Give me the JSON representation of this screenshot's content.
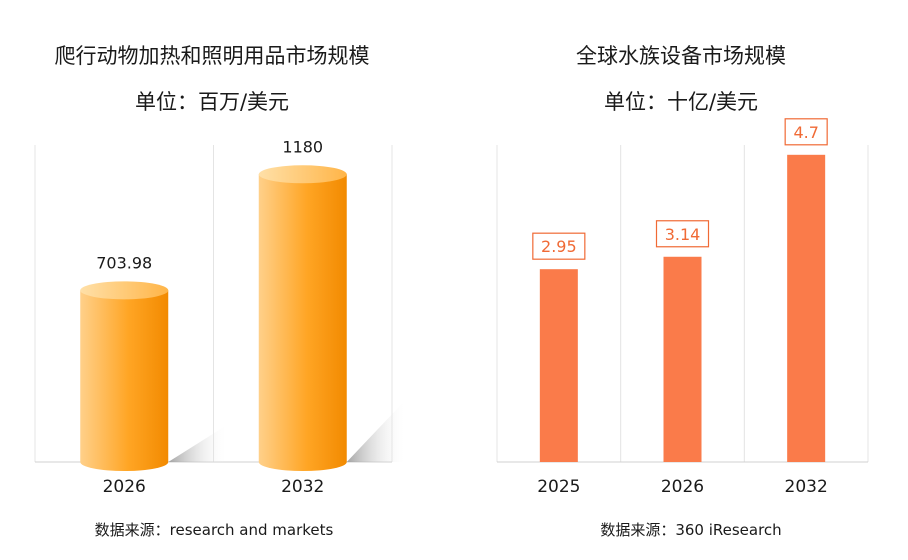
{
  "left": {
    "title_line1": "爬行动物加热和照明用品市场规模",
    "title_line2": "单位：百万/美元",
    "source": "数据来源：research and markets"
  },
  "right": {
    "title_line1": "全球水族设备市场规模",
    "title_line2": "单位：十亿/美元",
    "source": "数据来源：360 iResearch"
  },
  "colors": {
    "cylinder_light": "#ffd08a",
    "cylinder_mid": "#ffa524",
    "cylinder_dark": "#f28a00",
    "bar_red": "#fa7b4a",
    "label_border": "#f06a35",
    "grid": "#e4e4e4"
  },
  "chart_data": [
    {
      "type": "bar",
      "style": "3d-cylinder",
      "title": "爬行动物加热和照明用品市场规模",
      "subtitle": "单位：百万/美元",
      "categories": [
        "2026",
        "2032"
      ],
      "values": [
        703.98,
        1180
      ],
      "value_labels": [
        "703.98",
        "1180"
      ],
      "ylim": [
        0,
        1300
      ],
      "grid": "vertical-separators"
    },
    {
      "type": "bar",
      "title": "全球水族设备市场规模",
      "subtitle": "单位：十亿/美元",
      "categories": [
        "2025",
        "2026",
        "2032"
      ],
      "values": [
        2.95,
        3.14,
        4.7
      ],
      "value_labels": [
        "2.95",
        "3.14",
        "4.7"
      ],
      "ylim": [
        0,
        4.85
      ],
      "grid": "vertical-separators"
    }
  ]
}
